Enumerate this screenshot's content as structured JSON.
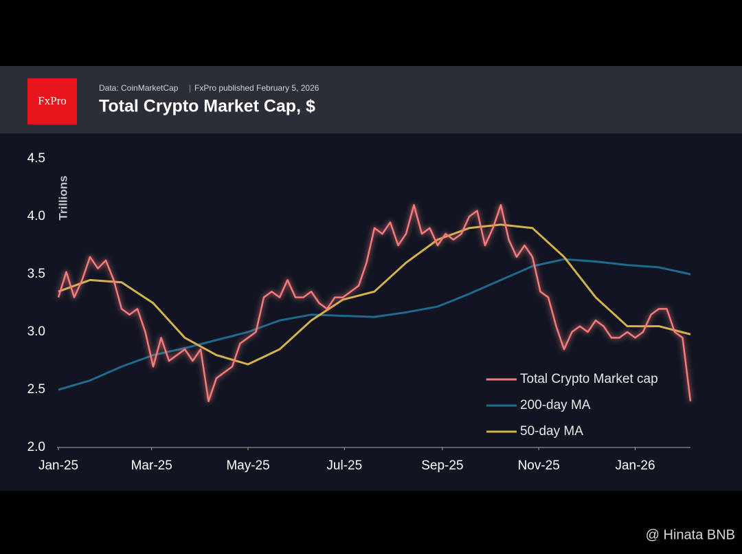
{
  "header": {
    "logo": "FxPro",
    "source": "Data: CoinMarketCap",
    "published": "FxPro published February 5, 2026"
  },
  "watermark": "@ Hinata BNB",
  "chart_data": {
    "type": "line",
    "title": "Total Crypto Market Cap, $",
    "y_label": "Trillions",
    "x": [
      0,
      5,
      10,
      15,
      20,
      25,
      30,
      35,
      40,
      45,
      50,
      55,
      60,
      65,
      70,
      75,
      80,
      85,
      90,
      95,
      100,
      105,
      110,
      115,
      120,
      125,
      130,
      135,
      140,
      145,
      150,
      155,
      160,
      165,
      170,
      175,
      180,
      185,
      190,
      195,
      200,
      205,
      210,
      215,
      220,
      225,
      230,
      235,
      240,
      245,
      250,
      255,
      260,
      265,
      270,
      275,
      280,
      285,
      290,
      295,
      300,
      305,
      310,
      315,
      320,
      325,
      330,
      335,
      340,
      345,
      350,
      355,
      360,
      365,
      370,
      375,
      380,
      385,
      390,
      395,
      400
    ],
    "series": [
      {
        "name": "Total Crypto Market cap",
        "color": "#f47c7c",
        "values": [
          3.3,
          3.52,
          3.3,
          3.45,
          3.65,
          3.55,
          3.62,
          3.45,
          3.2,
          3.15,
          3.2,
          3.0,
          2.7,
          2.95,
          2.75,
          2.8,
          2.85,
          2.75,
          2.85,
          2.4,
          2.6,
          2.65,
          2.7,
          2.9,
          2.95,
          3.0,
          3.3,
          3.35,
          3.3,
          3.45,
          3.3,
          3.3,
          3.35,
          3.25,
          3.2,
          3.3,
          3.3,
          3.35,
          3.4,
          3.6,
          3.9,
          3.85,
          3.95,
          3.75,
          3.85,
          4.1,
          3.85,
          3.9,
          3.75,
          3.85,
          3.8,
          3.85,
          4.0,
          4.05,
          3.75,
          3.9,
          4.1,
          3.8,
          3.65,
          3.75,
          3.65,
          3.35,
          3.3,
          3.05,
          2.85,
          3.0,
          3.05,
          3.0,
          3.1,
          3.05,
          2.95,
          2.95,
          3.0,
          2.95,
          3.0,
          3.15,
          3.2,
          3.2,
          3.0,
          2.95,
          2.4
        ]
      },
      {
        "name": "200-day MA",
        "color": "#1f6a8f",
        "x": [
          0,
          20,
          40,
          60,
          80,
          100,
          120,
          140,
          160,
          180,
          200,
          220,
          240,
          260,
          280,
          300,
          320,
          340,
          360,
          380,
          400
        ],
        "values": [
          2.5,
          2.58,
          2.7,
          2.8,
          2.86,
          2.93,
          3.0,
          3.1,
          3.15,
          3.14,
          3.13,
          3.17,
          3.22,
          3.33,
          3.45,
          3.57,
          3.63,
          3.61,
          3.58,
          3.56,
          3.5
        ]
      },
      {
        "name": "50-day MA",
        "color": "#d4b24c",
        "x": [
          0,
          20,
          40,
          60,
          80,
          100,
          120,
          140,
          160,
          180,
          200,
          220,
          240,
          260,
          280,
          300,
          320,
          340,
          360,
          380,
          400
        ],
        "values": [
          3.35,
          3.45,
          3.43,
          3.25,
          2.95,
          2.8,
          2.72,
          2.85,
          3.1,
          3.28,
          3.35,
          3.6,
          3.8,
          3.9,
          3.93,
          3.9,
          3.65,
          3.3,
          3.05,
          3.05,
          2.98
        ]
      }
    ],
    "xlim": [
      0,
      400
    ],
    "xticks": [
      {
        "value": 0,
        "label": "Jan-25"
      },
      {
        "value": 59,
        "label": "Mar-25"
      },
      {
        "value": 120,
        "label": "May-25"
      },
      {
        "value": 181,
        "label": "Jul-25"
      },
      {
        "value": 243,
        "label": "Sep-25"
      },
      {
        "value": 304,
        "label": "Nov-25"
      },
      {
        "value": 365,
        "label": "Jan-26"
      }
    ],
    "ylim": [
      2.0,
      4.5
    ],
    "yticks": [
      {
        "value": 2.0,
        "label": "2.0"
      },
      {
        "value": 2.5,
        "label": "2.5"
      },
      {
        "value": 3.0,
        "label": "3.0"
      },
      {
        "value": 3.5,
        "label": "3.5"
      },
      {
        "value": 4.0,
        "label": "4.0"
      },
      {
        "value": 4.5,
        "label": "4.5"
      }
    ],
    "legend": "lower right"
  }
}
